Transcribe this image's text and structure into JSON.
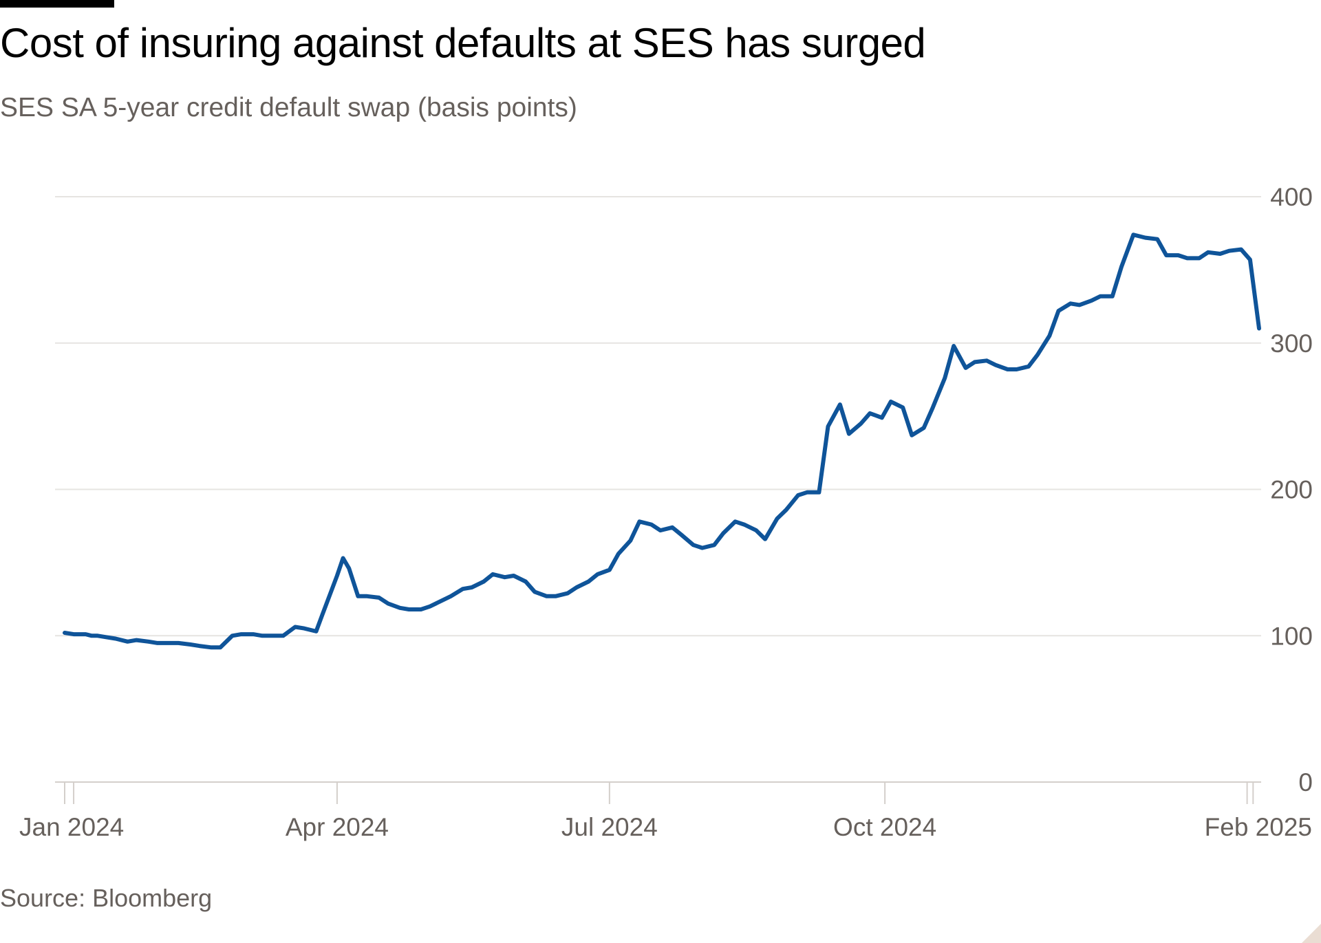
{
  "header": {
    "title": "Cost of insuring against defaults at SES has surged",
    "subtitle": "SES SA 5-year credit default swap (basis points)"
  },
  "footer": {
    "source": "Source: Bloomberg"
  },
  "colors": {
    "line": "#0f5499",
    "grid": "#e6e4e1",
    "text": "#66605c",
    "title": "#000000",
    "brand_bar": "#000000"
  },
  "chart_data": {
    "type": "line",
    "title": "Cost of insuring against defaults at SES has surged",
    "subtitle": "SES SA 5-year credit default swap (basis points)",
    "xlabel": "",
    "ylabel": "",
    "ylim": [
      0,
      400
    ],
    "xlim": [
      "2024-01-01",
      "2025-02-03"
    ],
    "yticks": [
      {
        "value": 0,
        "label": "0"
      },
      {
        "value": 100,
        "label": "100"
      },
      {
        "value": 200,
        "label": "200"
      },
      {
        "value": 300,
        "label": "300"
      },
      {
        "value": 400,
        "label": "400"
      }
    ],
    "xticks": [
      {
        "date": "2024-01-01",
        "label": "Jan 2024"
      },
      {
        "date": "2024-04-01",
        "label": "Apr 2024"
      },
      {
        "date": "2024-07-01",
        "label": "Jul 2024"
      },
      {
        "date": "2024-10-01",
        "label": "Oct 2024"
      },
      {
        "date": "2025-02-01",
        "label": "Feb 2025"
      }
    ],
    "minor_ticks": [
      "2024-01-04",
      "2025-01-30"
    ],
    "y_axis_side": "right",
    "grid": true,
    "legend": "none",
    "series": [
      {
        "x": [
          "2024-01-01",
          "2024-01-04",
          "2024-01-08",
          "2024-01-10",
          "2024-01-12",
          "2024-01-15",
          "2024-01-18",
          "2024-01-22",
          "2024-01-25",
          "2024-01-29",
          "2024-02-01",
          "2024-02-05",
          "2024-02-08",
          "2024-02-12",
          "2024-02-15",
          "2024-02-19",
          "2024-02-22",
          "2024-02-26",
          "2024-02-29",
          "2024-03-04",
          "2024-03-07",
          "2024-03-11",
          "2024-03-14",
          "2024-03-18",
          "2024-03-21",
          "2024-03-25",
          "2024-03-27",
          "2024-04-01",
          "2024-04-03",
          "2024-04-05",
          "2024-04-08",
          "2024-04-11",
          "2024-04-15",
          "2024-04-18",
          "2024-04-22",
          "2024-04-25",
          "2024-04-29",
          "2024-05-02",
          "2024-05-06",
          "2024-05-09",
          "2024-05-13",
          "2024-05-16",
          "2024-05-20",
          "2024-05-23",
          "2024-05-27",
          "2024-05-30",
          "2024-06-03",
          "2024-06-06",
          "2024-06-10",
          "2024-06-13",
          "2024-06-17",
          "2024-06-20",
          "2024-06-24",
          "2024-06-27",
          "2024-07-01",
          "2024-07-04",
          "2024-07-08",
          "2024-07-11",
          "2024-07-15",
          "2024-07-18",
          "2024-07-22",
          "2024-07-25",
          "2024-07-29",
          "2024-08-01",
          "2024-08-05",
          "2024-08-08",
          "2024-08-12",
          "2024-08-15",
          "2024-08-19",
          "2024-08-22",
          "2024-08-26",
          "2024-08-29",
          "2024-09-02",
          "2024-09-05",
          "2024-09-09",
          "2024-09-12",
          "2024-09-16",
          "2024-09-19",
          "2024-09-23",
          "2024-09-26",
          "2024-09-30",
          "2024-10-03",
          "2024-10-07",
          "2024-10-10",
          "2024-10-14",
          "2024-10-17",
          "2024-10-21",
          "2024-10-24",
          "2024-10-28",
          "2024-10-31",
          "2024-11-04",
          "2024-11-07",
          "2024-11-11",
          "2024-11-14",
          "2024-11-18",
          "2024-11-21",
          "2024-11-25",
          "2024-11-28",
          "2024-12-02",
          "2024-12-05",
          "2024-12-09",
          "2024-12-12",
          "2024-12-16",
          "2024-12-19",
          "2024-12-23",
          "2024-12-27",
          "2024-12-31",
          "2025-01-03",
          "2025-01-07",
          "2025-01-10",
          "2025-01-14",
          "2025-01-17",
          "2025-01-21",
          "2025-01-24",
          "2025-01-28",
          "2025-01-31",
          "2025-02-03"
        ],
        "y": [
          102,
          101,
          101,
          100,
          100,
          99,
          98,
          96,
          97,
          96,
          95,
          95,
          95,
          94,
          93,
          92,
          92,
          100,
          101,
          101,
          100,
          100,
          100,
          106,
          105,
          103,
          114,
          141,
          153,
          146,
          127,
          127,
          126,
          122,
          119,
          118,
          118,
          120,
          124,
          127,
          132,
          133,
          137,
          142,
          140,
          141,
          137,
          130,
          127,
          127,
          129,
          133,
          137,
          142,
          145,
          156,
          165,
          178,
          176,
          172,
          174,
          169,
          162,
          160,
          162,
          170,
          178,
          176,
          172,
          166,
          180,
          186,
          196,
          198,
          198,
          243,
          258,
          238,
          245,
          252,
          249,
          260,
          256,
          237,
          242,
          256,
          276,
          298,
          283,
          287,
          288,
          285,
          282,
          282,
          284,
          292,
          305,
          322,
          327,
          326,
          329,
          332,
          332,
          352,
          374,
          372,
          371,
          360,
          360,
          358,
          358,
          362,
          361,
          363,
          364,
          357,
          310
        ]
      }
    ]
  }
}
